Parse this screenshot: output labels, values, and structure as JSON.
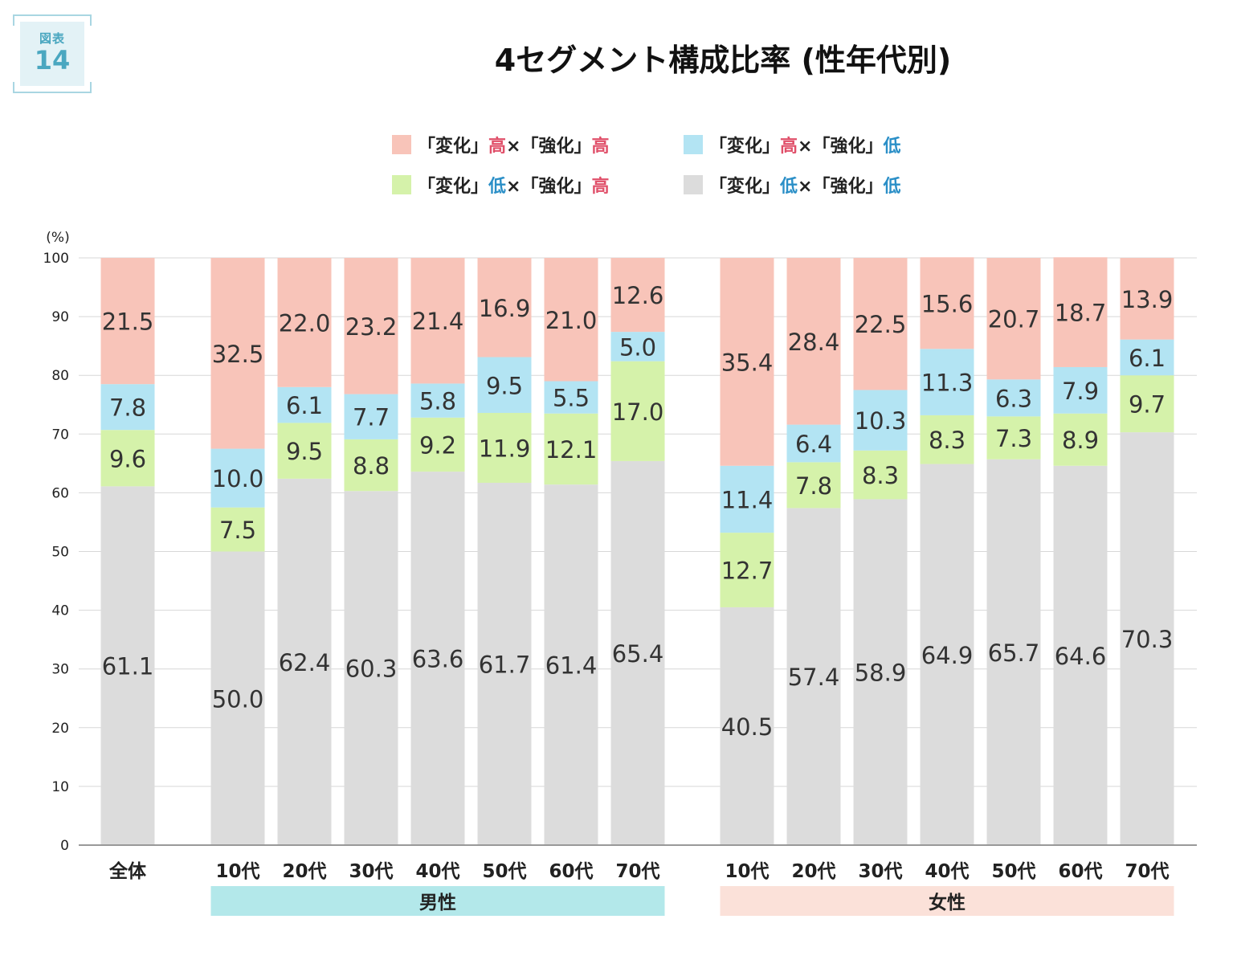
{
  "figure_badge": {
    "kind": "図表",
    "number": "14"
  },
  "chart_data": {
    "type": "bar",
    "stacked": true,
    "title": "4セグメント構成比率 (性年代別)",
    "y_unit_label": "(%)",
    "ylim": [
      0,
      100
    ],
    "yticks": [
      0,
      10,
      20,
      30,
      40,
      50,
      60,
      70,
      80,
      90,
      100
    ],
    "grid": true,
    "legend_placement": "top-center",
    "categories": [
      "全体",
      "10代",
      "20代",
      "30代",
      "40代",
      "50代",
      "60代",
      "70代",
      "10代",
      "20代",
      "30代",
      "40代",
      "50代",
      "60代",
      "70代"
    ],
    "groups": [
      {
        "label": "男性",
        "color": "#b3e8ea",
        "start": 1,
        "end": 7
      },
      {
        "label": "女性",
        "color": "#fbe1d9",
        "start": 8,
        "end": 14
      }
    ],
    "series": [
      {
        "name": "「変化」低×「強化」低",
        "legend_parts": [
          [
            "「変化」",
            "#222222"
          ],
          [
            "低",
            "#2b8fc7"
          ],
          [
            "×「強化」",
            "#222222"
          ],
          [
            "低",
            "#2b8fc7"
          ]
        ],
        "color": "#dcdcdc",
        "values": [
          61.1,
          50.0,
          62.4,
          60.3,
          63.6,
          61.7,
          61.4,
          65.4,
          40.5,
          57.4,
          58.9,
          64.9,
          65.7,
          64.6,
          70.3
        ]
      },
      {
        "name": "「変化」低×「強化」高",
        "legend_parts": [
          [
            "「変化」",
            "#222222"
          ],
          [
            "低",
            "#2b8fc7"
          ],
          [
            "×「強化」",
            "#222222"
          ],
          [
            "高",
            "#e0506a"
          ]
        ],
        "color": "#d5f2aa",
        "values": [
          9.6,
          7.5,
          9.5,
          8.8,
          9.2,
          11.9,
          12.1,
          17.0,
          12.7,
          7.8,
          8.3,
          8.3,
          7.3,
          8.9,
          9.7
        ]
      },
      {
        "name": "「変化」高×「強化」低",
        "legend_parts": [
          [
            "「変化」",
            "#222222"
          ],
          [
            "高",
            "#e0506a"
          ],
          [
            "×「強化」",
            "#222222"
          ],
          [
            "低",
            "#2b8fc7"
          ]
        ],
        "color": "#b3e4f3",
        "values": [
          7.8,
          10.0,
          6.1,
          7.7,
          5.8,
          9.5,
          5.5,
          5.0,
          11.4,
          6.4,
          10.3,
          11.3,
          6.3,
          7.9,
          6.1
        ]
      },
      {
        "name": "「変化」高×「強化」高",
        "legend_parts": [
          [
            "「変化」",
            "#222222"
          ],
          [
            "高",
            "#e0506a"
          ],
          [
            "×「強化」",
            "#222222"
          ],
          [
            "高",
            "#e0506a"
          ]
        ],
        "color": "#f8c4b9",
        "values": [
          21.5,
          32.5,
          22.0,
          23.2,
          21.4,
          16.9,
          21.0,
          12.6,
          35.4,
          28.4,
          22.5,
          15.6,
          20.7,
          18.7,
          13.9
        ]
      }
    ]
  }
}
